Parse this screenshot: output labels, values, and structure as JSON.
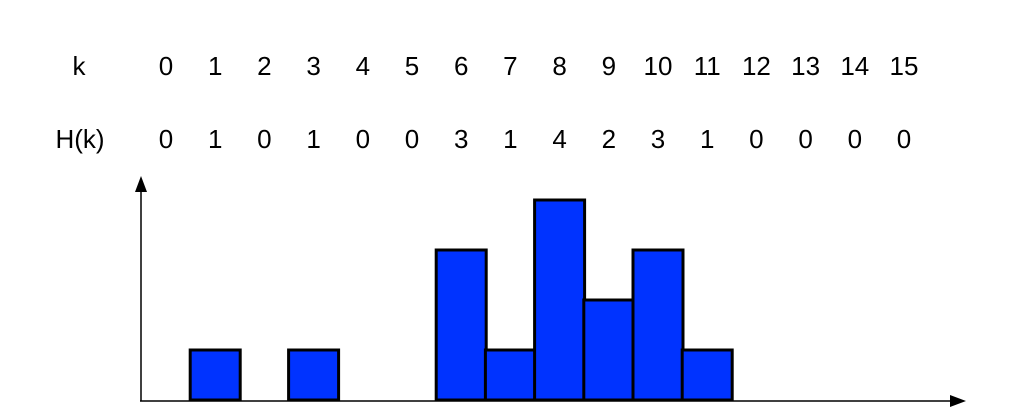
{
  "chart_data": {
    "type": "bar",
    "row_labels": {
      "k": "k",
      "h": "H(k)"
    },
    "categories": [
      "0",
      "1",
      "2",
      "3",
      "4",
      "5",
      "6",
      "7",
      "8",
      "9",
      "10",
      "11",
      "12",
      "13",
      "14",
      "15"
    ],
    "values": [
      0,
      1,
      0,
      1,
      0,
      0,
      3,
      1,
      4,
      2,
      3,
      1,
      0,
      0,
      0,
      0
    ],
    "value_labels": [
      "0",
      "1",
      "0",
      "1",
      "0",
      "0",
      "3",
      "1",
      "4",
      "2",
      "3",
      "1",
      "0",
      "0",
      "0",
      "0"
    ],
    "title": "",
    "xlabel": "",
    "ylabel": "",
    "ylim": [
      0,
      4
    ],
    "grid": false,
    "legend": "none",
    "bar_color": "#0033ff",
    "bar_edge_color": "#000000",
    "axis_color": "#000000"
  }
}
